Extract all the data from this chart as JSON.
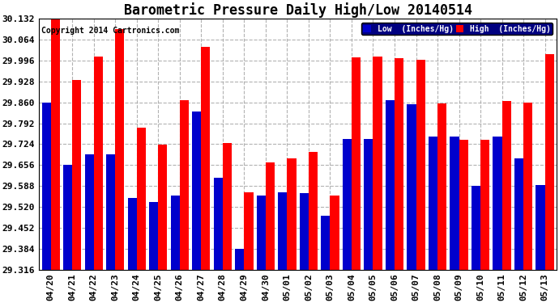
{
  "title": "Barometric Pressure Daily High/Low 20140514",
  "copyright": "Copyright 2014 Cartronics.com",
  "background_color": "#ffffff",
  "plot_bg_color": "#ffffff",
  "grid_color": "#aaaaaa",
  "dates": [
    "04/20",
    "04/21",
    "04/22",
    "04/23",
    "04/24",
    "04/25",
    "04/26",
    "04/27",
    "04/28",
    "04/29",
    "04/30",
    "05/01",
    "05/02",
    "05/03",
    "05/04",
    "05/05",
    "05/06",
    "05/07",
    "05/08",
    "05/09",
    "05/10",
    "05/11",
    "05/12",
    "05/13"
  ],
  "low": [
    29.86,
    29.656,
    29.692,
    29.692,
    29.55,
    29.536,
    29.556,
    29.83,
    29.616,
    29.384,
    29.556,
    29.568,
    29.564,
    29.492,
    29.74,
    29.74,
    29.868,
    29.854,
    29.748,
    29.748,
    29.588,
    29.748,
    29.678,
    29.592
  ],
  "high": [
    30.132,
    29.932,
    30.008,
    30.098,
    29.778,
    29.722,
    29.868,
    30.04,
    29.728,
    29.568,
    29.666,
    29.678,
    29.698,
    29.558,
    30.006,
    30.008,
    30.004,
    29.998,
    29.856,
    29.738,
    29.738,
    29.864,
    29.86,
    30.018
  ],
  "low_color": "#0000cc",
  "high_color": "#ff0000",
  "ymin": 29.316,
  "ymax": 30.132,
  "yticks": [
    29.316,
    29.384,
    29.452,
    29.52,
    29.588,
    29.656,
    29.724,
    29.792,
    29.86,
    29.928,
    29.996,
    30.064,
    30.132
  ],
  "legend_low_label": "Low  (Inches/Hg)",
  "legend_high_label": "High  (Inches/Hg)",
  "title_fontsize": 12,
  "tick_fontsize": 8,
  "copyright_fontsize": 7
}
